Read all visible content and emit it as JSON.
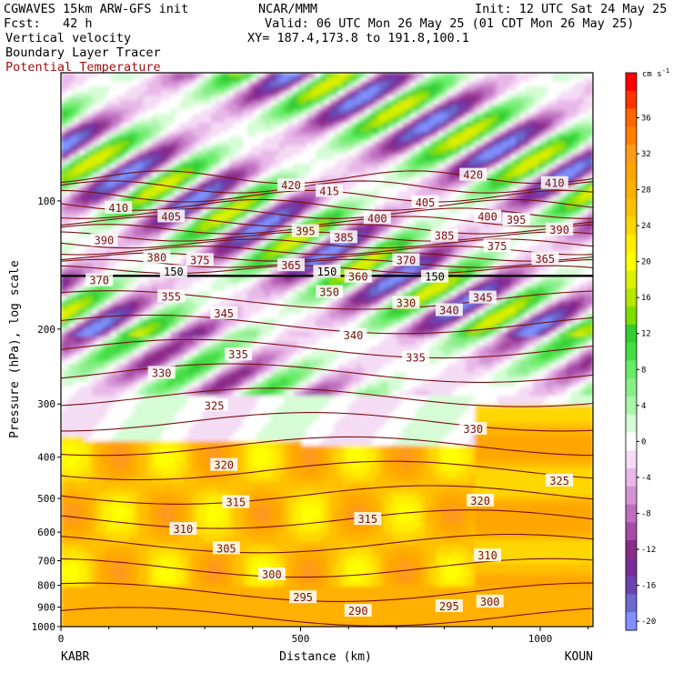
{
  "header": {
    "model": "CGWAVES 15km ARW-GFS init",
    "fcst": "Fcst:   42 h",
    "field1": "Vertical velocity",
    "field2": "Boundary Layer Tracer",
    "field3": "Potential Temperature",
    "center": "NCAR/MMM",
    "valid": "Valid: 06 UTC Mon 26 May 25 (01 CDT Mon 26 May 25)",
    "xy": "XY= 187.4,173.8 to 191.8,100.1",
    "init": "Init: 12 UTC Sat 24 May 25"
  },
  "chart_data": {
    "type": "heatmap",
    "xlabel": "Distance (km)",
    "ylabel": "Pressure (hPa), log scale",
    "xlim": [
      0,
      1110
    ],
    "ylim": [
      1000,
      50
    ],
    "y_scale": "log",
    "x_ticks": [
      0,
      500,
      1000
    ],
    "y_ticks": [
      100,
      200,
      300,
      400,
      500,
      600,
      700,
      800,
      900,
      1000
    ],
    "x_endpoint_labels": [
      "KABR",
      "KOUN"
    ],
    "colorbar": {
      "unit": "cm s",
      "unit_exp": "-1",
      "ticks": [
        36,
        32,
        28,
        24,
        20,
        16,
        12,
        8,
        4,
        0,
        -4,
        -8,
        -12,
        -16,
        -20
      ],
      "levels": [
        {
          "value": 40,
          "color": "#ff0000"
        },
        {
          "value": 38,
          "color": "#ff3300"
        },
        {
          "value": 36,
          "color": "#ff6600"
        },
        {
          "value": 34,
          "color": "#ff8000"
        },
        {
          "value": 32,
          "color": "#ff9a1a"
        },
        {
          "value": 30,
          "color": "#ffa500"
        },
        {
          "value": 28,
          "color": "#ffb000"
        },
        {
          "value": 26,
          "color": "#ffc000"
        },
        {
          "value": 24,
          "color": "#ffd700"
        },
        {
          "value": 22,
          "color": "#ffee00"
        },
        {
          "value": 20,
          "color": "#ffff00"
        },
        {
          "value": 18,
          "color": "#ddf000"
        },
        {
          "value": 16,
          "color": "#b4e600"
        },
        {
          "value": 14,
          "color": "#80dd00"
        },
        {
          "value": 12,
          "color": "#33cc33"
        },
        {
          "value": 10,
          "color": "#44dd44"
        },
        {
          "value": 8,
          "color": "#66ee66"
        },
        {
          "value": 6,
          "color": "#88ee88"
        },
        {
          "value": 4,
          "color": "#aaf5aa"
        },
        {
          "value": 2,
          "color": "#d6fcd6"
        },
        {
          "value": 0,
          "color": "#ffffff"
        },
        {
          "value": -2,
          "color": "#f5dcf5"
        },
        {
          "value": -4,
          "color": "#e8b8e8"
        },
        {
          "value": -6,
          "color": "#d494d4"
        },
        {
          "value": -8,
          "color": "#bf6ebf"
        },
        {
          "value": -10,
          "color": "#a64ca6"
        },
        {
          "value": -12,
          "color": "#8a2c8a"
        },
        {
          "value": -14,
          "color": "#7a2b9a"
        },
        {
          "value": -16,
          "color": "#6a44b0"
        },
        {
          "value": -18,
          "color": "#6a6ad0"
        },
        {
          "value": -20,
          "color": "#8090ff"
        }
      ]
    },
    "theta_labels": [
      {
        "v": "420",
        "x": 480,
        "p": 92
      },
      {
        "v": "415",
        "x": 560,
        "p": 95
      },
      {
        "v": "420",
        "x": 860,
        "p": 87
      },
      {
        "v": "410",
        "x": 1030,
        "p": 91
      },
      {
        "v": "410",
        "x": 120,
        "p": 104
      },
      {
        "v": "405",
        "x": 230,
        "p": 109
      },
      {
        "v": "405",
        "x": 760,
        "p": 101
      },
      {
        "v": "400",
        "x": 660,
        "p": 110
      },
      {
        "v": "400",
        "x": 890,
        "p": 109
      },
      {
        "v": "395",
        "x": 510,
        "p": 118
      },
      {
        "v": "395",
        "x": 950,
        "p": 111
      },
      {
        "v": "390",
        "x": 90,
        "p": 124
      },
      {
        "v": "390",
        "x": 1040,
        "p": 117
      },
      {
        "v": "385",
        "x": 590,
        "p": 122
      },
      {
        "v": "385",
        "x": 800,
        "p": 121
      },
      {
        "v": "380",
        "x": 200,
        "p": 136
      },
      {
        "v": "375",
        "x": 290,
        "p": 138
      },
      {
        "v": "375",
        "x": 910,
        "p": 128
      },
      {
        "v": "370",
        "x": 720,
        "p": 138
      },
      {
        "v": "365",
        "x": 1010,
        "p": 137
      },
      {
        "v": "365",
        "x": 480,
        "p": 142
      },
      {
        "v": "370",
        "x": 80,
        "p": 154
      },
      {
        "v": "360",
        "x": 620,
        "p": 151
      },
      {
        "v": "355",
        "x": 230,
        "p": 168
      },
      {
        "v": "350",
        "x": 560,
        "p": 164
      },
      {
        "v": "345",
        "x": 340,
        "p": 184
      },
      {
        "v": "345",
        "x": 880,
        "p": 169
      },
      {
        "v": "330",
        "x": 720,
        "p": 174
      },
      {
        "v": "340",
        "x": 810,
        "p": 181
      },
      {
        "v": "340",
        "x": 610,
        "p": 207
      },
      {
        "v": "335",
        "x": 370,
        "p": 230
      },
      {
        "v": "335",
        "x": 740,
        "p": 234
      },
      {
        "v": "330",
        "x": 210,
        "p": 254
      },
      {
        "v": "325",
        "x": 320,
        "p": 303
      },
      {
        "v": "330",
        "x": 860,
        "p": 344
      },
      {
        "v": "320",
        "x": 340,
        "p": 418
      },
      {
        "v": "315",
        "x": 365,
        "p": 511
      },
      {
        "v": "315",
        "x": 640,
        "p": 560
      },
      {
        "v": "320",
        "x": 875,
        "p": 507
      },
      {
        "v": "325",
        "x": 1040,
        "p": 455
      },
      {
        "v": "310",
        "x": 255,
        "p": 591
      },
      {
        "v": "305",
        "x": 345,
        "p": 656
      },
      {
        "v": "310",
        "x": 890,
        "p": 682
      },
      {
        "v": "300",
        "x": 440,
        "p": 755
      },
      {
        "v": "295",
        "x": 505,
        "p": 855
      },
      {
        "v": "290",
        "x": 620,
        "p": 920
      },
      {
        "v": "295",
        "x": 810,
        "p": 897
      },
      {
        "v": "300",
        "x": 895,
        "p": 875
      }
    ],
    "tracer_labels": [
      {
        "v": "150",
        "x": 235,
        "p": 147
      },
      {
        "v": "150",
        "x": 555,
        "p": 147
      },
      {
        "v": "150",
        "x": 780,
        "p": 151
      }
    ]
  }
}
